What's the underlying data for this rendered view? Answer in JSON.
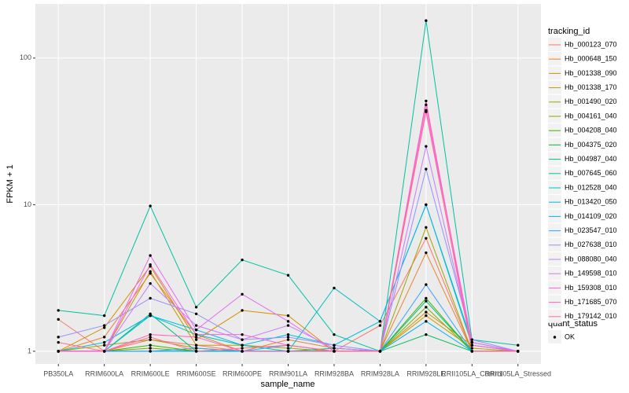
{
  "chart_data": {
    "type": "line",
    "x_label": "sample_name",
    "y_label": "FPKM + 1",
    "log_y": true,
    "grid": true,
    "legend_title": "tracking_id",
    "point_color": "#000000",
    "quant_status_legend": {
      "title": "quant_status",
      "labels": [
        "OK"
      ]
    },
    "categories": [
      "PB350LA",
      "RRIM600LA",
      "RRIM600LE",
      "RRIM600SE",
      "RRIM600PE",
      "RRIM901LA",
      "RRIM928BA",
      "RRIM928LA",
      "RRIM928LE",
      "RRII105LA_Control",
      "RRII105LA_Stressed"
    ],
    "ylim": [
      0.82,
      234
    ],
    "yticks": [
      1,
      10,
      100
    ],
    "series": [
      {
        "name": "Hb_000123_070",
        "color": "#F8766D",
        "values": [
          1.65,
          1.0,
          1.2,
          1.1,
          1.0,
          1.0,
          1.0,
          1.5,
          5.9,
          1.0,
          1.0
        ]
      },
      {
        "name": "Hb_000648_150",
        "color": "#EA8331",
        "values": [
          1.0,
          1.25,
          3.4,
          1.3,
          1.0,
          1.2,
          1.05,
          1.0,
          4.7,
          1.0,
          1.0
        ]
      },
      {
        "name": "Hb_001338_090",
        "color": "#D89000",
        "values": [
          1.0,
          1.45,
          3.8,
          1.2,
          1.9,
          1.75,
          1.0,
          1.0,
          1.85,
          1.1,
          1.0
        ]
      },
      {
        "name": "Hb_001338_170",
        "color": "#C09B00",
        "values": [
          1.0,
          1.0,
          3.5,
          1.1,
          1.1,
          1.05,
          1.0,
          1.0,
          1.75,
          1.05,
          1.0
        ]
      },
      {
        "name": "Hb_001490_020",
        "color": "#A3A500",
        "values": [
          1.0,
          1.1,
          1.2,
          1.05,
          1.0,
          1.0,
          1.0,
          1.0,
          7.0,
          1.0,
          1.0
        ]
      },
      {
        "name": "Hb_004161_040",
        "color": "#7CAE00",
        "values": [
          1.0,
          1.0,
          1.05,
          1.0,
          1.0,
          1.0,
          1.0,
          1.0,
          2.0,
          1.0,
          1.0
        ]
      },
      {
        "name": "Hb_004208_040",
        "color": "#39B600",
        "values": [
          1.0,
          1.0,
          1.1,
          1.0,
          1.0,
          1.0,
          1.0,
          1.0,
          2.3,
          1.0,
          1.0
        ]
      },
      {
        "name": "Hb_004375_020",
        "color": "#00BB4E",
        "values": [
          1.0,
          1.0,
          1.0,
          1.0,
          1.0,
          1.0,
          1.0,
          1.0,
          1.3,
          1.0,
          1.0
        ]
      },
      {
        "name": "Hb_004987_040",
        "color": "#00BF7D",
        "values": [
          1.0,
          1.0,
          1.8,
          1.0,
          1.0,
          1.0,
          1.05,
          1.0,
          2.2,
          1.0,
          1.0
        ]
      },
      {
        "name": "Hb_007645_060",
        "color": "#00C1A3",
        "values": [
          1.9,
          1.75,
          9.8,
          2.0,
          4.2,
          3.3,
          1.3,
          1.0,
          180,
          1.2,
          1.1
        ]
      },
      {
        "name": "Hb_012528_040",
        "color": "#00BFC4",
        "values": [
          1.0,
          1.0,
          1.75,
          1.3,
          1.1,
          1.0,
          2.7,
          1.6,
          10,
          1.1,
          1.0
        ]
      },
      {
        "name": "Hb_013420_050",
        "color": "#00BAE0",
        "values": [
          1.0,
          1.15,
          1.75,
          1.4,
          1.1,
          1.3,
          1.1,
          1.6,
          10,
          1.15,
          1.0
        ]
      },
      {
        "name": "Hb_014109_020",
        "color": "#00B0F6",
        "values": [
          1.0,
          1.0,
          1.0,
          1.0,
          1.0,
          1.0,
          1.0,
          1.0,
          1.6,
          1.0,
          1.0
        ]
      },
      {
        "name": "Hb_023547_010",
        "color": "#35A2FF",
        "values": [
          1.0,
          1.0,
          1.0,
          1.05,
          1.0,
          1.1,
          1.0,
          1.0,
          2.85,
          1.0,
          1.0
        ]
      },
      {
        "name": "Hb_027638_010",
        "color": "#9590FF",
        "values": [
          1.25,
          1.5,
          2.3,
          1.8,
          1.2,
          1.25,
          1.1,
          1.0,
          17.5,
          1.2,
          1.0
        ]
      },
      {
        "name": "Hb_088080_040",
        "color": "#C77CFF",
        "values": [
          1.0,
          1.0,
          2.9,
          1.5,
          1.2,
          1.5,
          1.05,
          1.0,
          25,
          1.1,
          1.0
        ]
      },
      {
        "name": "Hb_149598_010",
        "color": "#E76BF3",
        "values": [
          1.0,
          1.0,
          4.5,
          1.4,
          2.45,
          1.6,
          1.0,
          1.0,
          44,
          1.15,
          1.0
        ]
      },
      {
        "name": "Hb_159308_010",
        "color": "#FA62DB",
        "values": [
          1.0,
          1.0,
          3.9,
          1.3,
          1.3,
          1.1,
          1.0,
          1.0,
          48,
          1.1,
          1.0
        ]
      },
      {
        "name": "Hb_171685_070",
        "color": "#FF62BC",
        "values": [
          1.0,
          1.0,
          1.3,
          1.25,
          1.0,
          1.0,
          1.0,
          1.0,
          51,
          1.0,
          1.0
        ]
      },
      {
        "name": "Hb_179142_010",
        "color": "#FF6C91",
        "values": [
          1.15,
          1.0,
          1.25,
          1.0,
          1.05,
          1.1,
          1.0,
          1.0,
          43,
          1.0,
          1.0
        ]
      }
    ]
  }
}
